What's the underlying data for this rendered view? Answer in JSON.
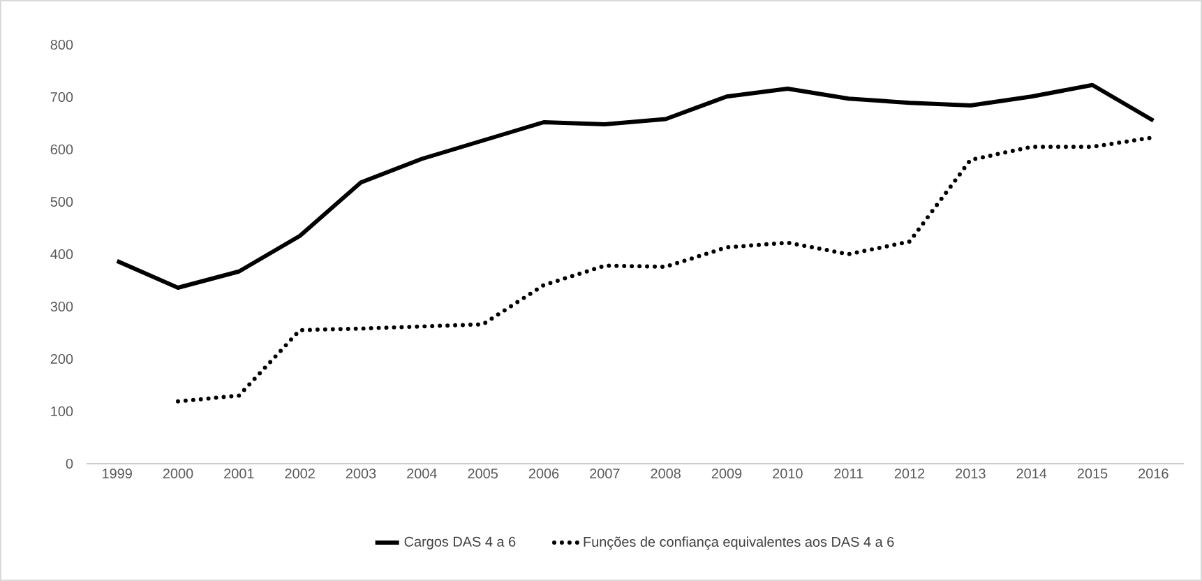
{
  "chart_data": {
    "type": "line",
    "categories": [
      "1999",
      "2000",
      "2001",
      "2002",
      "2003",
      "2004",
      "2005",
      "2006",
      "2007",
      "2008",
      "2009",
      "2010",
      "2011",
      "2012",
      "2013",
      "2014",
      "2015",
      "2016"
    ],
    "series": [
      {
        "name": "Cargos DAS 4 a 6",
        "color": "#000000",
        "line_style": "solid",
        "values": [
          387,
          336,
          367,
          435,
          537,
          582,
          617,
          652,
          648,
          658,
          701,
          716,
          697,
          689,
          684,
          701,
          723,
          655
        ]
      },
      {
        "name": "Funções de confiança equivalentes aos DAS 4 a 6",
        "color": "#000000",
        "line_style": "dotted",
        "values": [
          null,
          119,
          130,
          255,
          258,
          262,
          266,
          341,
          378,
          376,
          413,
          422,
          400,
          424,
          580,
          605,
          605,
          623
        ]
      }
    ],
    "ylim": [
      0,
      800
    ],
    "yticks": [
      0,
      100,
      200,
      300,
      400,
      500,
      600,
      700,
      800
    ],
    "grid": false,
    "legend": "bottom",
    "marker": "none"
  }
}
